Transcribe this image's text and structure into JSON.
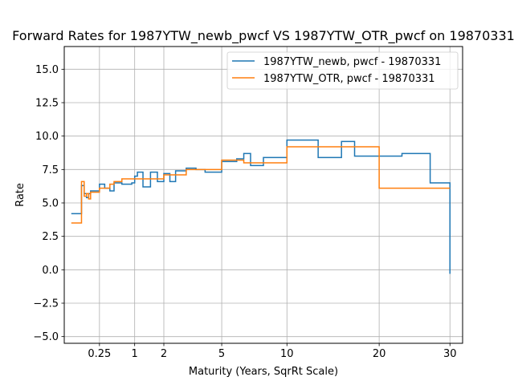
{
  "chart_data": {
    "type": "line",
    "title": "Forward Rates for 1987YTW_newb_pwcf VS 1987YTW_OTR_pwcf on 19870331",
    "xlabel": "Maturity (Years, SqrRt Scale)",
    "ylabel": "Rate",
    "x_scale": "sqrt",
    "xlim": [
      0.0,
      32.0
    ],
    "ylim": [
      -5.5,
      16.7
    ],
    "x_ticks": [
      0.25,
      1,
      2,
      5,
      10,
      20,
      30
    ],
    "x_tick_labels": [
      "0.25",
      "1",
      "2",
      "5",
      "10",
      "20",
      "30"
    ],
    "y_ticks": [
      -5.0,
      -2.5,
      0.0,
      2.5,
      5.0,
      7.5,
      10.0,
      12.5,
      15.0
    ],
    "y_tick_labels": [
      "−5.0",
      "−2.5",
      "0.0",
      "2.5",
      "5.0",
      "7.5",
      "10.0",
      "12.5",
      "15.0"
    ],
    "grid": true,
    "legend_position": "top-right",
    "step": "post",
    "series": [
      {
        "name": "1987YTW_newb, pwcf - 19870331",
        "color": "#1f77b4",
        "x": [
          0.01,
          0.05,
          0.06,
          0.08,
          0.1,
          0.12,
          0.14,
          0.25,
          0.33,
          0.42,
          0.5,
          0.67,
          0.92,
          1.0,
          1.08,
          1.25,
          1.5,
          1.75,
          2.0,
          2.25,
          2.5,
          3.0,
          3.5,
          4.0,
          5.0,
          6.0,
          6.5,
          7.0,
          8.0,
          10.0,
          13.0,
          15.5,
          17.0,
          23.0,
          27.0,
          30.0
        ],
        "y": [
          4.2,
          4.2,
          6.3,
          5.7,
          5.4,
          5.7,
          5.9,
          6.4,
          6.1,
          5.9,
          6.5,
          6.4,
          6.5,
          7.0,
          7.3,
          6.2,
          7.3,
          6.6,
          7.2,
          6.6,
          7.4,
          7.6,
          7.5,
          7.3,
          8.1,
          8.3,
          8.7,
          7.8,
          8.4,
          9.7,
          8.4,
          9.6,
          8.5,
          8.7,
          6.5,
          -0.3
        ]
      },
      {
        "name": "1987YTW_OTR, pwcf - 19870331",
        "color": "#ff7f0e",
        "x": [
          0.01,
          0.05,
          0.06,
          0.08,
          0.1,
          0.12,
          0.14,
          0.25,
          0.42,
          0.5,
          0.67,
          1.0,
          2.0,
          3.0,
          5.0,
          6.5,
          10.0,
          20.0,
          30.0
        ],
        "y": [
          3.5,
          3.5,
          6.6,
          5.5,
          5.7,
          5.3,
          5.8,
          6.1,
          6.4,
          6.6,
          6.8,
          6.8,
          7.1,
          7.5,
          8.2,
          8.0,
          9.2,
          6.1,
          6.1
        ]
      }
    ]
  }
}
